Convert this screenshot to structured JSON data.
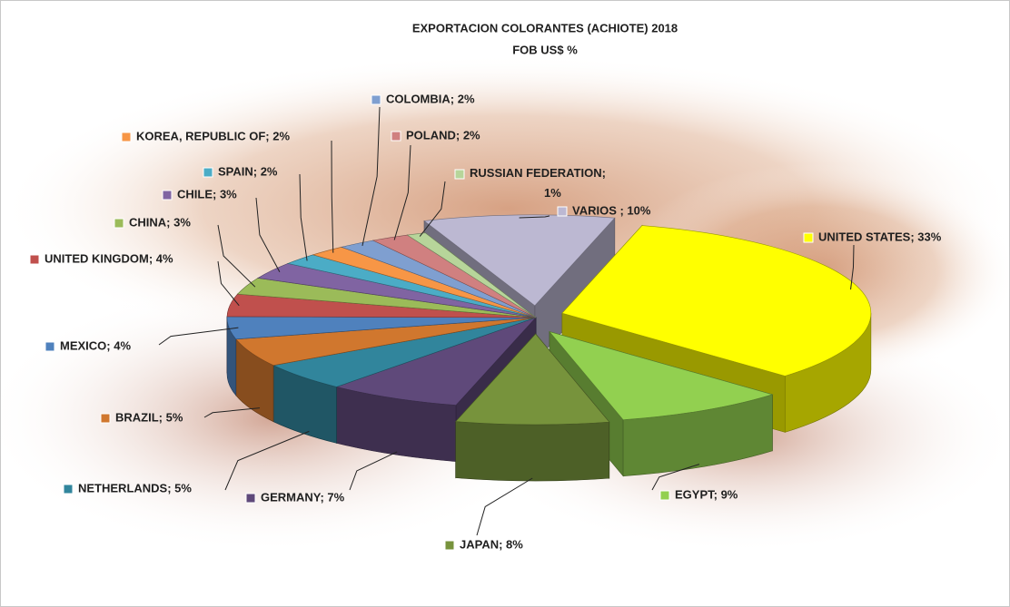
{
  "chart_data": {
    "type": "pie",
    "title": "EXPORTACION  COLORANTES (ACHIOTE) 2018",
    "subtitle": "FOB US$ %",
    "values": [
      33,
      9,
      8,
      7,
      5,
      5,
      4,
      4,
      3,
      3,
      2,
      2,
      2,
      2,
      1,
      10
    ],
    "value_labels": [
      "UNITED STATES; 33%",
      "EGYPT; 9%",
      "JAPAN; 8%",
      "GERMANY; 7%",
      "NETHERLANDS; 5%",
      "BRAZIL; 5%",
      "MEXICO; 4%",
      "UNITED KINGDOM; 4%",
      "CHINA; 3%",
      "CHILE; 3%",
      "SPAIN; 2%",
      "KOREA, REPUBLIC OF; 2%",
      "COLOMBIA; 2%",
      "POLAND; 2%",
      "RUSSIAN FEDERATION; 1%",
      "VARIOS ; 10%"
    ],
    "colors": [
      "#ffff00",
      "#92d050",
      "#77933c",
      "#5f497a",
      "#31859c",
      "#d0772e",
      "#4f81bd",
      "#c0504d",
      "#9bbb59",
      "#8064a2",
      "#4bacc6",
      "#f79646",
      "#7f9fd0",
      "#d08080",
      "#b7d59a",
      "#bcb8d2"
    ]
  }
}
